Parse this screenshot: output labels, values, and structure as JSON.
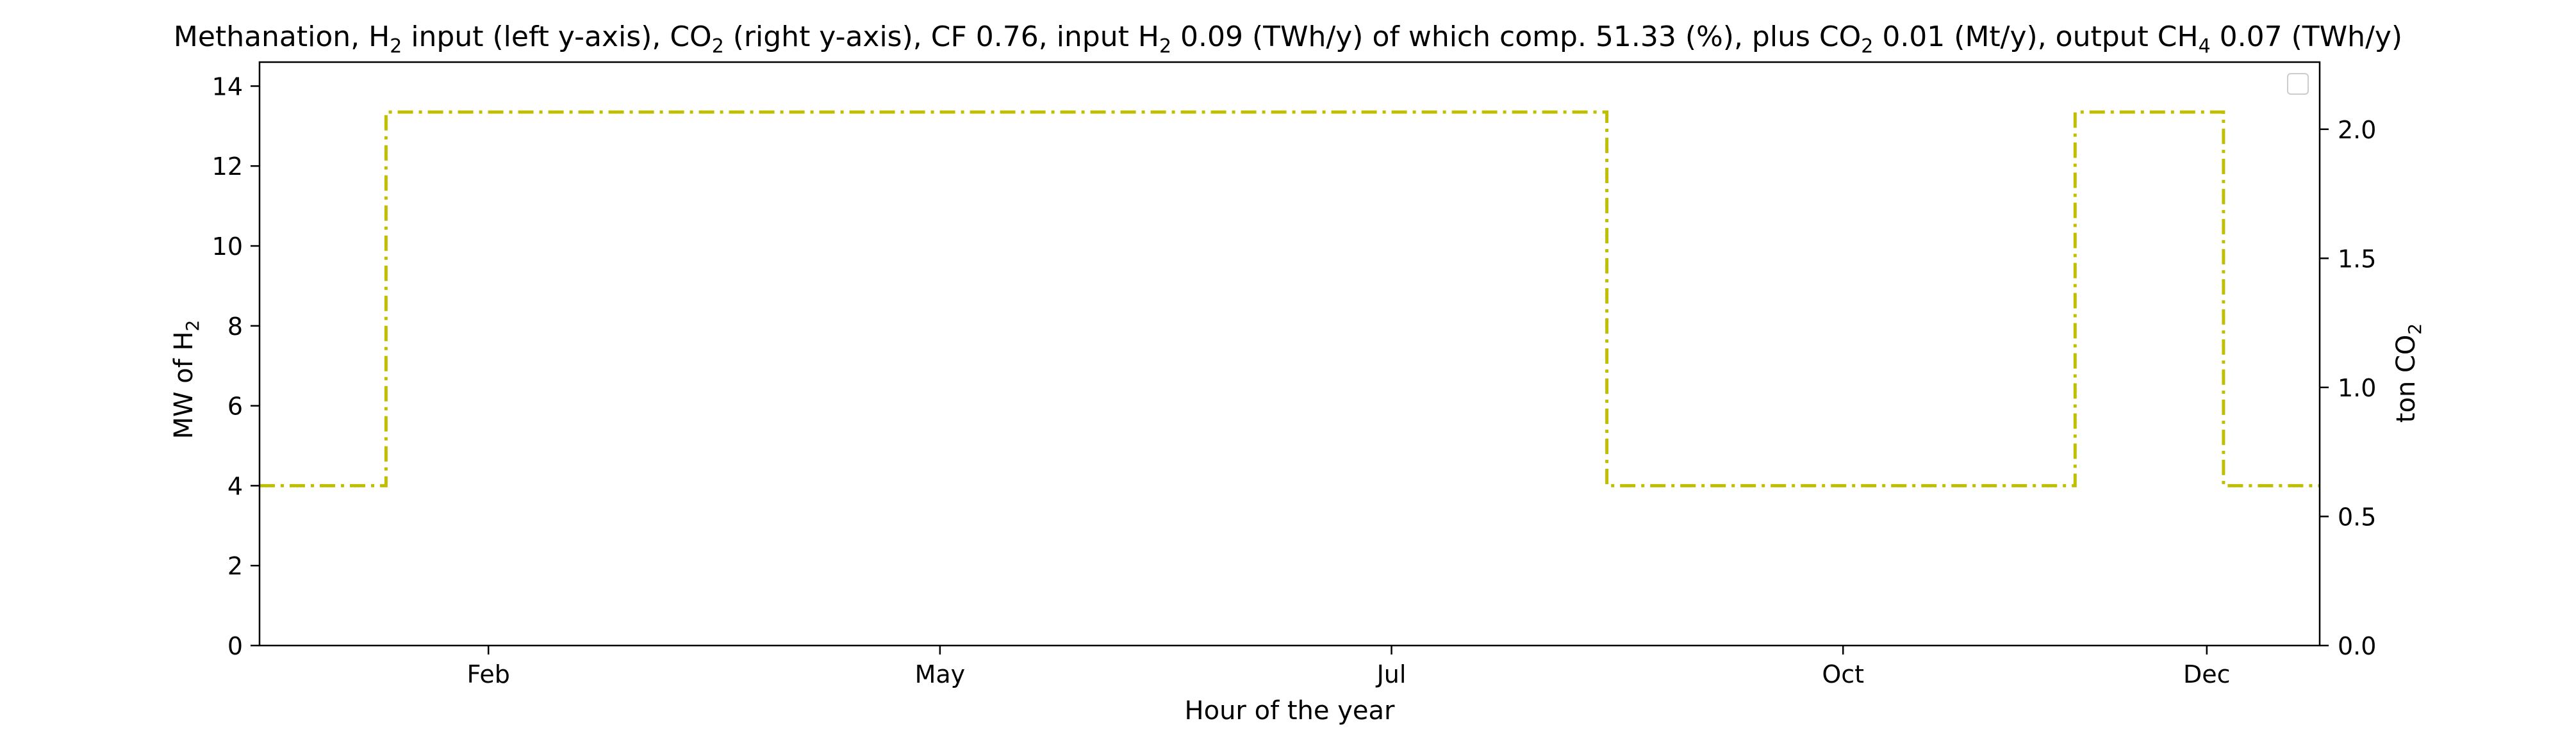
{
  "chart_data": {
    "type": "line",
    "title": "Methanation, H2 input (left y-axis), CO2 (right y-axis), CF 0.76, input H2 0.09 (TWh/y) of which comp. 51.33 (%), plus CO2 0.01 (Mt/y), output CH4 0.07 (TWh/y)",
    "title_parts": [
      {
        "t": "Methanation, H",
        "sub": false
      },
      {
        "t": "2",
        "sub": true
      },
      {
        "t": " input (left y-axis), CO",
        "sub": false
      },
      {
        "t": "2",
        "sub": true
      },
      {
        "t": " (right y-axis), CF 0.76, input H",
        "sub": false
      },
      {
        "t": "2",
        "sub": true
      },
      {
        "t": " 0.09 (TWh/y) of which comp. 51.33 (%), plus CO",
        "sub": false
      },
      {
        "t": "2",
        "sub": true
      },
      {
        "t": " 0.01 (Mt/y), output CH",
        "sub": false
      },
      {
        "t": "4",
        "sub": true
      },
      {
        "t": " 0.07 (TWh/y)",
        "sub": false
      }
    ],
    "xlabel": "Hour of the year",
    "ylabel_left": {
      "main": "MW of H",
      "sub": "2"
    },
    "ylabel_right": {
      "main": "ton CO",
      "sub": "2"
    },
    "x_tick_labels": [
      "Feb",
      "May",
      "Jul",
      "Oct",
      "Dec"
    ],
    "x_ticks": [
      730,
      2890,
      5050,
      7210,
      8950
    ],
    "xlim": [
      -365,
      9490
    ],
    "ylim_left": [
      0,
      14.6
    ],
    "ylim_right": [
      0,
      2.26
    ],
    "y_ticks_left": [
      0,
      2,
      4,
      6,
      8,
      10,
      12,
      14
    ],
    "y_ticks_right": [
      "0.0",
      "0.5",
      "1.0",
      "1.5",
      "2.0"
    ],
    "grid": false,
    "legend": {
      "placement": "upper-right",
      "entries": []
    },
    "series": [
      {
        "axis": "left",
        "color": "#bfbf00",
        "linestyle": "dashdot",
        "drawstyle": "steps-post",
        "x": [
          -365,
          240,
          6080,
          8320,
          9030,
          9490
        ],
        "y": [
          4.0,
          13.35,
          4.0,
          13.35,
          4.0,
          4.0
        ]
      }
    ]
  }
}
